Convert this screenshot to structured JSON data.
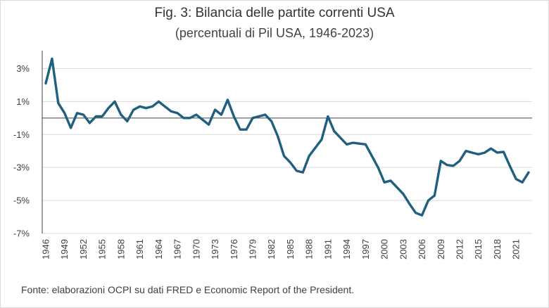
{
  "title": "Fig. 3: Bilancia delle partite correnti USA",
  "subtitle": "(percentuali di Pil USA, 1946-2023)",
  "source": "Fonte: elaborazioni OCPI su dati FRED e Economic Report of the President.",
  "colors": {
    "line": "#1f5f80",
    "axis": "#404040",
    "grid": "#d9d9d9",
    "zero_line": "#404040"
  },
  "chart_data": {
    "type": "line",
    "title": "Fig. 3: Bilancia delle partite correnti USA",
    "subtitle": "(percentuali di Pil USA, 1946-2023)",
    "xlabel": "",
    "ylabel": "",
    "ylim": [
      -7,
      4
    ],
    "y_ticks": [
      3,
      1,
      -1,
      -3,
      -5,
      -7
    ],
    "y_tick_labels": [
      "3%",
      "1%",
      "-1%",
      "-3%",
      "-5%",
      "-7%"
    ],
    "x_tick_labels": [
      "1946",
      "1949",
      "1952",
      "1955",
      "1958",
      "1961",
      "1964",
      "1967",
      "1970",
      "1973",
      "1976",
      "1979",
      "1982",
      "1985",
      "1988",
      "1991",
      "1994",
      "1997",
      "2000",
      "2003",
      "2006",
      "2009",
      "2012",
      "2015",
      "2018",
      "2021"
    ],
    "grid": {
      "horizontal": true,
      "vertical": false
    },
    "legend": "none",
    "series": [
      {
        "x": [
          1946,
          1947,
          1948,
          1949,
          1950,
          1951,
          1952,
          1953,
          1954,
          1955,
          1956,
          1957,
          1958,
          1959,
          1960,
          1961,
          1962,
          1963,
          1964,
          1965,
          1966,
          1967,
          1968,
          1969,
          1970,
          1971,
          1972,
          1973,
          1974,
          1975,
          1976,
          1977,
          1978,
          1979,
          1980,
          1981,
          1982,
          1983,
          1984,
          1985,
          1986,
          1987,
          1988,
          1989,
          1990,
          1991,
          1992,
          1993,
          1994,
          1995,
          1996,
          1997,
          1998,
          1999,
          2000,
          2001,
          2002,
          2003,
          2004,
          2005,
          2006,
          2007,
          2008,
          2009,
          2010,
          2011,
          2012,
          2013,
          2014,
          2015,
          2016,
          2017,
          2018,
          2019,
          2020,
          2021,
          2022,
          2023
        ],
        "values": [
          2.1,
          3.6,
          0.9,
          0.3,
          -0.6,
          0.3,
          0.2,
          -0.3,
          0.1,
          0.1,
          0.6,
          1.0,
          0.2,
          -0.2,
          0.5,
          0.7,
          0.6,
          0.7,
          1.0,
          0.7,
          0.4,
          0.3,
          0.0,
          0.0,
          0.2,
          -0.1,
          -0.4,
          0.5,
          0.2,
          1.1,
          0.1,
          -0.7,
          -0.7,
          0.0,
          0.1,
          0.2,
          -0.2,
          -1.1,
          -2.3,
          -2.7,
          -3.2,
          -3.3,
          -2.3,
          -1.8,
          -1.3,
          0.1,
          -0.8,
          -1.2,
          -1.6,
          -1.5,
          -1.55,
          -1.6,
          -2.3,
          -3.0,
          -3.9,
          -3.8,
          -4.2,
          -4.6,
          -5.2,
          -5.75,
          -5.9,
          -5.0,
          -4.7,
          -2.6,
          -2.85,
          -2.9,
          -2.6,
          -2.0,
          -2.1,
          -2.2,
          -2.1,
          -1.85,
          -2.1,
          -2.05,
          -2.9,
          -3.7,
          -3.9,
          -3.3
        ]
      }
    ]
  }
}
